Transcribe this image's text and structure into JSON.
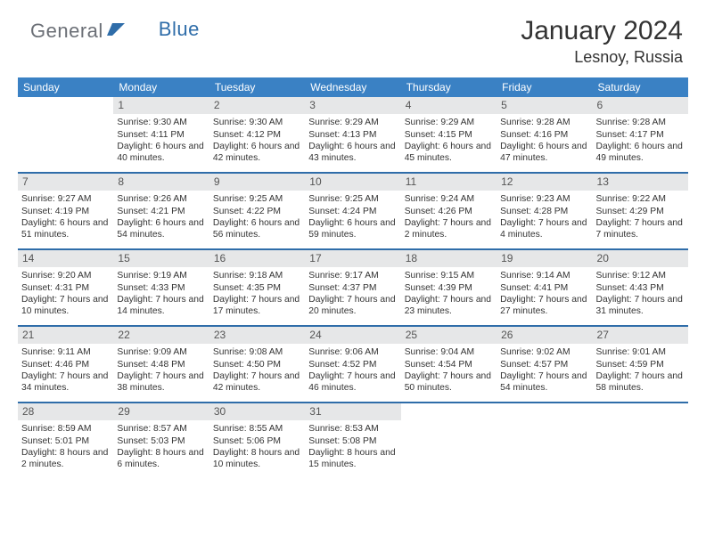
{
  "logo": {
    "part1": "General",
    "part2": "Blue"
  },
  "title": "January 2024",
  "location": "Lesnoy, Russia",
  "colors": {
    "header_bg": "#3a81c4",
    "header_fg": "#ffffff",
    "daynum_bg": "#e6e7e8",
    "rule": "#2f6da9",
    "logo_gray": "#6b6f76",
    "logo_blue": "#2f6da9",
    "text": "#333333"
  },
  "days_of_week": [
    "Sunday",
    "Monday",
    "Tuesday",
    "Wednesday",
    "Thursday",
    "Friday",
    "Saturday"
  ],
  "weeks": [
    [
      {
        "n": "",
        "sunrise": "",
        "sunset": "",
        "daylight": ""
      },
      {
        "n": "1",
        "sunrise": "Sunrise: 9:30 AM",
        "sunset": "Sunset: 4:11 PM",
        "daylight": "Daylight: 6 hours and 40 minutes."
      },
      {
        "n": "2",
        "sunrise": "Sunrise: 9:30 AM",
        "sunset": "Sunset: 4:12 PM",
        "daylight": "Daylight: 6 hours and 42 minutes."
      },
      {
        "n": "3",
        "sunrise": "Sunrise: 9:29 AM",
        "sunset": "Sunset: 4:13 PM",
        "daylight": "Daylight: 6 hours and 43 minutes."
      },
      {
        "n": "4",
        "sunrise": "Sunrise: 9:29 AM",
        "sunset": "Sunset: 4:15 PM",
        "daylight": "Daylight: 6 hours and 45 minutes."
      },
      {
        "n": "5",
        "sunrise": "Sunrise: 9:28 AM",
        "sunset": "Sunset: 4:16 PM",
        "daylight": "Daylight: 6 hours and 47 minutes."
      },
      {
        "n": "6",
        "sunrise": "Sunrise: 9:28 AM",
        "sunset": "Sunset: 4:17 PM",
        "daylight": "Daylight: 6 hours and 49 minutes."
      }
    ],
    [
      {
        "n": "7",
        "sunrise": "Sunrise: 9:27 AM",
        "sunset": "Sunset: 4:19 PM",
        "daylight": "Daylight: 6 hours and 51 minutes."
      },
      {
        "n": "8",
        "sunrise": "Sunrise: 9:26 AM",
        "sunset": "Sunset: 4:21 PM",
        "daylight": "Daylight: 6 hours and 54 minutes."
      },
      {
        "n": "9",
        "sunrise": "Sunrise: 9:25 AM",
        "sunset": "Sunset: 4:22 PM",
        "daylight": "Daylight: 6 hours and 56 minutes."
      },
      {
        "n": "10",
        "sunrise": "Sunrise: 9:25 AM",
        "sunset": "Sunset: 4:24 PM",
        "daylight": "Daylight: 6 hours and 59 minutes."
      },
      {
        "n": "11",
        "sunrise": "Sunrise: 9:24 AM",
        "sunset": "Sunset: 4:26 PM",
        "daylight": "Daylight: 7 hours and 2 minutes."
      },
      {
        "n": "12",
        "sunrise": "Sunrise: 9:23 AM",
        "sunset": "Sunset: 4:28 PM",
        "daylight": "Daylight: 7 hours and 4 minutes."
      },
      {
        "n": "13",
        "sunrise": "Sunrise: 9:22 AM",
        "sunset": "Sunset: 4:29 PM",
        "daylight": "Daylight: 7 hours and 7 minutes."
      }
    ],
    [
      {
        "n": "14",
        "sunrise": "Sunrise: 9:20 AM",
        "sunset": "Sunset: 4:31 PM",
        "daylight": "Daylight: 7 hours and 10 minutes."
      },
      {
        "n": "15",
        "sunrise": "Sunrise: 9:19 AM",
        "sunset": "Sunset: 4:33 PM",
        "daylight": "Daylight: 7 hours and 14 minutes."
      },
      {
        "n": "16",
        "sunrise": "Sunrise: 9:18 AM",
        "sunset": "Sunset: 4:35 PM",
        "daylight": "Daylight: 7 hours and 17 minutes."
      },
      {
        "n": "17",
        "sunrise": "Sunrise: 9:17 AM",
        "sunset": "Sunset: 4:37 PM",
        "daylight": "Daylight: 7 hours and 20 minutes."
      },
      {
        "n": "18",
        "sunrise": "Sunrise: 9:15 AM",
        "sunset": "Sunset: 4:39 PM",
        "daylight": "Daylight: 7 hours and 23 minutes."
      },
      {
        "n": "19",
        "sunrise": "Sunrise: 9:14 AM",
        "sunset": "Sunset: 4:41 PM",
        "daylight": "Daylight: 7 hours and 27 minutes."
      },
      {
        "n": "20",
        "sunrise": "Sunrise: 9:12 AM",
        "sunset": "Sunset: 4:43 PM",
        "daylight": "Daylight: 7 hours and 31 minutes."
      }
    ],
    [
      {
        "n": "21",
        "sunrise": "Sunrise: 9:11 AM",
        "sunset": "Sunset: 4:46 PM",
        "daylight": "Daylight: 7 hours and 34 minutes."
      },
      {
        "n": "22",
        "sunrise": "Sunrise: 9:09 AM",
        "sunset": "Sunset: 4:48 PM",
        "daylight": "Daylight: 7 hours and 38 minutes."
      },
      {
        "n": "23",
        "sunrise": "Sunrise: 9:08 AM",
        "sunset": "Sunset: 4:50 PM",
        "daylight": "Daylight: 7 hours and 42 minutes."
      },
      {
        "n": "24",
        "sunrise": "Sunrise: 9:06 AM",
        "sunset": "Sunset: 4:52 PM",
        "daylight": "Daylight: 7 hours and 46 minutes."
      },
      {
        "n": "25",
        "sunrise": "Sunrise: 9:04 AM",
        "sunset": "Sunset: 4:54 PM",
        "daylight": "Daylight: 7 hours and 50 minutes."
      },
      {
        "n": "26",
        "sunrise": "Sunrise: 9:02 AM",
        "sunset": "Sunset: 4:57 PM",
        "daylight": "Daylight: 7 hours and 54 minutes."
      },
      {
        "n": "27",
        "sunrise": "Sunrise: 9:01 AM",
        "sunset": "Sunset: 4:59 PM",
        "daylight": "Daylight: 7 hours and 58 minutes."
      }
    ],
    [
      {
        "n": "28",
        "sunrise": "Sunrise: 8:59 AM",
        "sunset": "Sunset: 5:01 PM",
        "daylight": "Daylight: 8 hours and 2 minutes."
      },
      {
        "n": "29",
        "sunrise": "Sunrise: 8:57 AM",
        "sunset": "Sunset: 5:03 PM",
        "daylight": "Daylight: 8 hours and 6 minutes."
      },
      {
        "n": "30",
        "sunrise": "Sunrise: 8:55 AM",
        "sunset": "Sunset: 5:06 PM",
        "daylight": "Daylight: 8 hours and 10 minutes."
      },
      {
        "n": "31",
        "sunrise": "Sunrise: 8:53 AM",
        "sunset": "Sunset: 5:08 PM",
        "daylight": "Daylight: 8 hours and 15 minutes."
      },
      {
        "n": "",
        "sunrise": "",
        "sunset": "",
        "daylight": ""
      },
      {
        "n": "",
        "sunrise": "",
        "sunset": "",
        "daylight": ""
      },
      {
        "n": "",
        "sunrise": "",
        "sunset": "",
        "daylight": ""
      }
    ]
  ]
}
